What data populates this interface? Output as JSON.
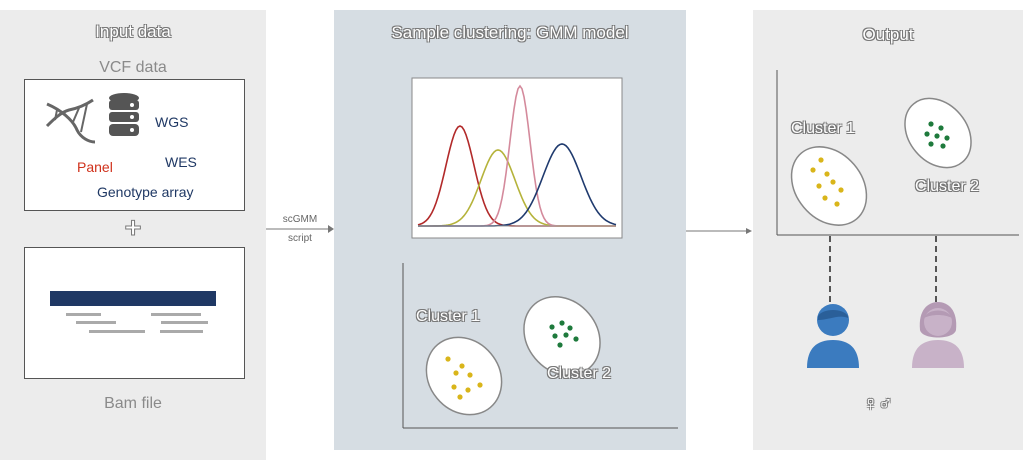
{
  "input": {
    "title": "Input data",
    "vcf_title": "VCF data",
    "wgs": "WGS",
    "wes": "WES",
    "panel": "Panel",
    "genotype": "Genotype array",
    "plus": "+",
    "bam": "Bam file"
  },
  "arrow": {
    "line1": "scGMM",
    "line2": "script"
  },
  "cluster": {
    "title": "Sample clustering: GMM model",
    "cluster1": "Cluster 1",
    "cluster2": "Cluster 2"
  },
  "output": {
    "title": "Output",
    "cluster1": "Cluster 1",
    "cluster2": "Cluster 2",
    "gender_symbols": "♀♂"
  },
  "colors": {
    "navy": "#1f3864",
    "panel_red": "#d0311b",
    "yellow_dot": "#d9b51a",
    "green_dot": "#1e7a3c",
    "male": "#3b7bbf",
    "female": "#c8b2c8",
    "curve_red": "#b22a2a",
    "curve_olive": "#b5b33b",
    "curve_pink": "#d48a9c",
    "curve_blue": "#1f3a6e"
  }
}
